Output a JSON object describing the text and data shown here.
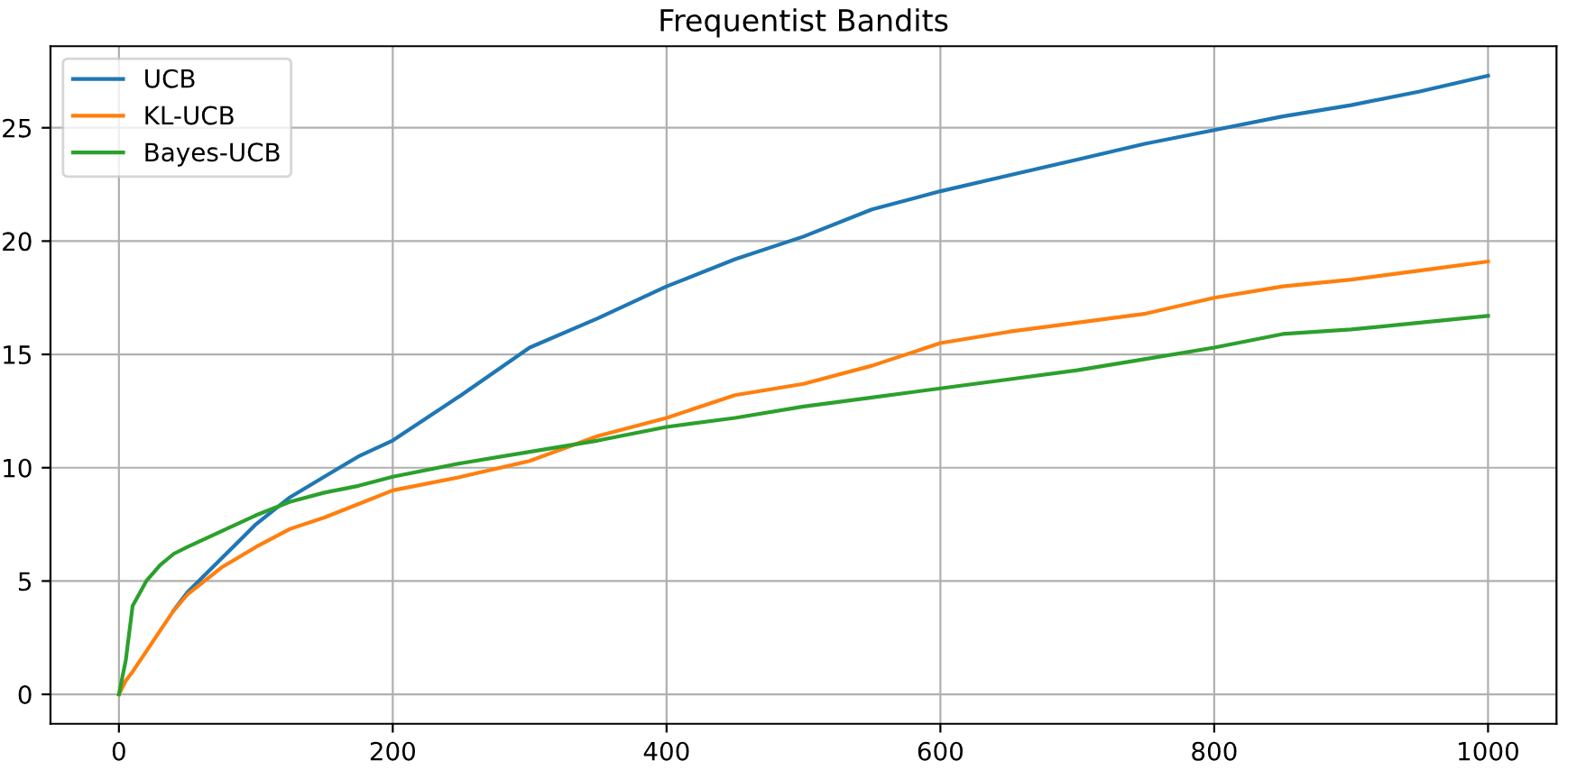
{
  "chart_data": {
    "type": "line",
    "title": "Frequentist Bandits",
    "x": [
      0,
      5,
      10,
      20,
      30,
      40,
      50,
      75,
      100,
      125,
      150,
      175,
      200,
      250,
      300,
      350,
      400,
      450,
      500,
      550,
      600,
      650,
      700,
      750,
      800,
      850,
      900,
      950,
      1000
    ],
    "series": [
      {
        "name": "UCB",
        "color": "#1f77b4",
        "values": [
          null,
          null,
          null,
          null,
          null,
          3.7,
          4.5,
          6.0,
          7.5,
          8.7,
          9.6,
          10.5,
          11.2,
          13.2,
          15.3,
          16.6,
          18.0,
          19.2,
          20.2,
          21.4,
          22.2,
          22.9,
          23.6,
          24.3,
          24.9,
          25.5,
          26.0,
          26.6,
          27.3
        ]
      },
      {
        "name": "KL-UCB",
        "color": "#ff7f0e",
        "values": [
          0,
          0.6,
          1.0,
          1.9,
          2.8,
          3.7,
          4.4,
          5.6,
          6.5,
          7.3,
          7.8,
          8.4,
          9.0,
          9.6,
          10.3,
          11.4,
          12.2,
          13.2,
          13.7,
          14.5,
          15.5,
          16.0,
          16.4,
          16.8,
          17.5,
          18.0,
          18.3,
          18.7,
          19.1
        ]
      },
      {
        "name": "Bayes-UCB",
        "color": "#2ca02c",
        "values": [
          0,
          1.5,
          3.9,
          5.0,
          5.7,
          6.2,
          6.5,
          7.2,
          7.9,
          8.5,
          8.9,
          9.2,
          9.6,
          10.2,
          10.7,
          11.2,
          11.8,
          12.2,
          12.7,
          13.1,
          13.5,
          13.9,
          14.3,
          14.8,
          15.3,
          15.9,
          16.1,
          16.4,
          16.7
        ]
      }
    ],
    "xlim": [
      -50,
      1050
    ],
    "ylim": [
      -1.3,
      28.6
    ],
    "xticks": [
      0,
      200,
      400,
      600,
      800,
      1000
    ],
    "yticks": [
      0,
      5,
      10,
      15,
      20,
      25
    ],
    "grid": true,
    "legend": "top left"
  }
}
